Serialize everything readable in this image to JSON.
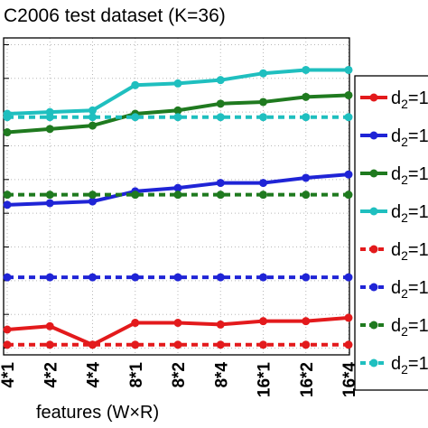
{
  "chart_data": {
    "type": "line",
    "title": "C2006 test dataset (K=36)",
    "xlabel": "features (W×R)",
    "ylabel": "",
    "categories": [
      "4*1",
      "4*2",
      "4*4",
      "8*1",
      "8*2",
      "8*4",
      "16*1",
      "16*2",
      "16*4"
    ],
    "ylim": [
      0,
      1
    ],
    "grid": true,
    "legend_position": "right",
    "series": [
      {
        "name": "d2=1",
        "color": "#e31a1c",
        "line": "solid",
        "values": [
          0.055,
          0.065,
          0.01,
          0.075,
          0.075,
          0.07,
          0.08,
          0.08,
          0.09
        ]
      },
      {
        "name": "d2=1",
        "color": "#1f24d6",
        "line": "solid",
        "values": [
          0.425,
          0.43,
          0.435,
          0.465,
          0.475,
          0.49,
          0.49,
          0.505,
          0.515
        ]
      },
      {
        "name": "d2=1",
        "color": "#1f7a1f",
        "line": "solid",
        "values": [
          0.64,
          0.65,
          0.66,
          0.695,
          0.705,
          0.725,
          0.73,
          0.745,
          0.75
        ]
      },
      {
        "name": "d2=1",
        "color": "#1fbfbf",
        "line": "solid",
        "values": [
          0.695,
          0.7,
          0.705,
          0.78,
          0.785,
          0.795,
          0.815,
          0.825,
          0.825
        ]
      },
      {
        "name": "d2=1",
        "color": "#e31a1c",
        "line": "dashed",
        "values": [
          0.01,
          0.01,
          0.01,
          0.01,
          0.01,
          0.01,
          0.01,
          0.01,
          0.01
        ]
      },
      {
        "name": "d2=1",
        "color": "#1f24d6",
        "line": "dashed",
        "values": [
          0.21,
          0.21,
          0.21,
          0.21,
          0.21,
          0.21,
          0.21,
          0.21,
          0.21
        ]
      },
      {
        "name": "d2=1",
        "color": "#1f7a1f",
        "line": "dashed",
        "values": [
          0.455,
          0.455,
          0.455,
          0.455,
          0.455,
          0.455,
          0.455,
          0.455,
          0.455
        ]
      },
      {
        "name": "d2=1",
        "color": "#1fbfbf",
        "line": "dashed",
        "values": [
          0.685,
          0.685,
          0.685,
          0.685,
          0.685,
          0.685,
          0.685,
          0.685,
          0.685
        ]
      }
    ]
  }
}
